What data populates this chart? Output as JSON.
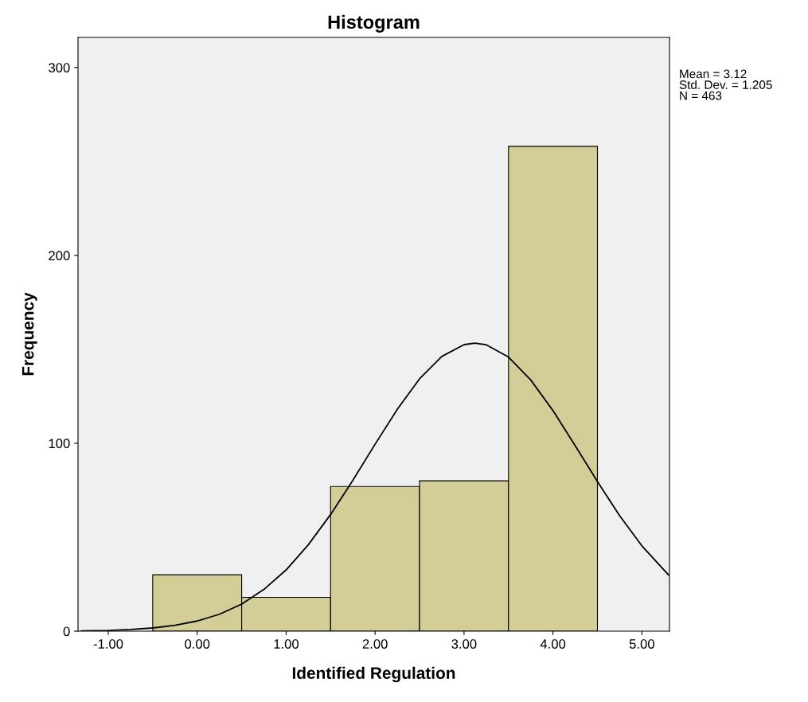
{
  "chart_data": {
    "type": "histogram",
    "title": "Histogram",
    "xlabel": "Identified Regulation",
    "ylabel": "Frequency",
    "bins": [
      -0.5,
      0.5,
      1.5,
      2.5,
      3.5,
      4.5
    ],
    "values": [
      30,
      18,
      77,
      80,
      258
    ],
    "color": "#d3ce97",
    "series": [
      {
        "type": "line",
        "color": "#000000",
        "x": [
          -1.3,
          -1.0,
          -0.75,
          -0.5,
          -0.25,
          0,
          0.25,
          0.5,
          0.75,
          1.0,
          1.25,
          1.5,
          1.75,
          2.0,
          2.25,
          2.5,
          2.75,
          3.0,
          3.12,
          3.25,
          3.5,
          3.75,
          4.0,
          4.25,
          4.5,
          4.75,
          5.0,
          5.3
        ],
        "values": [
          0.2,
          0.4,
          0.9,
          1.7,
          3.1,
          5.4,
          9.0,
          14.4,
          22.2,
          32.6,
          46.0,
          62.1,
          80.3,
          99.5,
          118.1,
          134.3,
          146.2,
          152.5,
          153.3,
          152.4,
          145.9,
          133.7,
          117.4,
          98.7,
          79.6,
          61.4,
          45.4,
          29.9
        ]
      }
    ],
    "xlim": [
      -1.34,
      5.31
    ],
    "ylim": [
      0,
      316
    ],
    "xticks": [
      {
        "value": -1,
        "label": "-1.00"
      },
      {
        "value": 0,
        "label": "0.00"
      },
      {
        "value": 1,
        "label": "1.00"
      },
      {
        "value": 2,
        "label": "2.00"
      },
      {
        "value": 3,
        "label": "3.00"
      },
      {
        "value": 4,
        "label": "4.00"
      },
      {
        "value": 5,
        "label": "5.00"
      }
    ],
    "yticks": [
      0,
      100,
      200,
      300
    ],
    "annotations": [
      "Mean = 3.12\nStd. Dev. = 1.205\nN = 463"
    ],
    "grid": false,
    "legend": false
  }
}
